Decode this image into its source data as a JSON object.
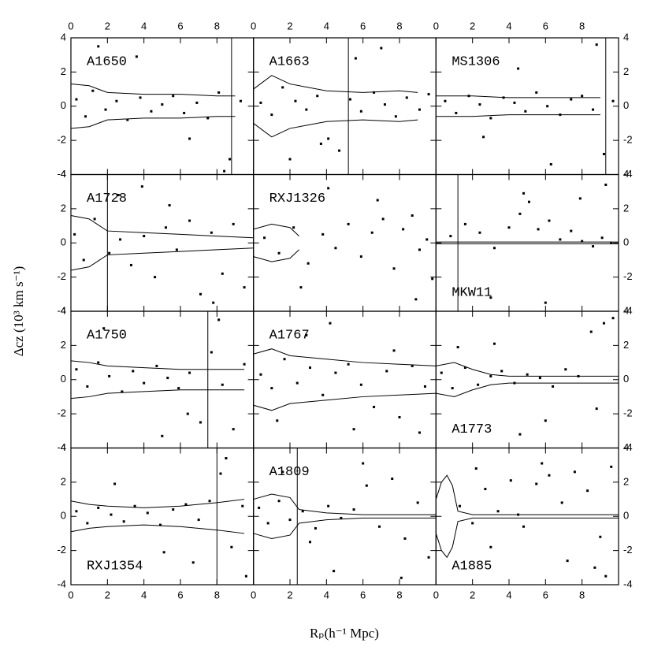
{
  "xlabel": "Rₚ(h⁻¹ Mpc)",
  "ylabel": "Δcz (10³ km s⁻¹)",
  "chart_data": [
    {
      "type": "scatter",
      "title": "A1650",
      "title_position": "top",
      "xlim": [
        0,
        10
      ],
      "ylim": [
        -4,
        4
      ],
      "xticks": [
        0,
        2,
        4,
        6,
        8
      ],
      "yticks": [
        -4,
        -2,
        0,
        2,
        4
      ],
      "color": "#000000",
      "x": [
        0.3,
        0.8,
        1.2,
        1.9,
        2.5,
        3.1,
        3.8,
        4.4,
        5.0,
        5.6,
        6.2,
        6.9,
        7.5,
        8.1,
        8.7,
        9.3,
        3.6,
        6.5,
        8.4,
        1.5
      ],
      "values": [
        0.4,
        -0.6,
        0.9,
        -0.2,
        0.3,
        -0.8,
        0.5,
        -0.3,
        0.1,
        0.6,
        -0.4,
        0.2,
        -0.7,
        0.8,
        -3.1,
        0.3,
        2.9,
        -1.9,
        -3.8,
        3.5
      ],
      "caustic_x": [
        0,
        1,
        2,
        4,
        6,
        8,
        9
      ],
      "caustic": [
        1.3,
        1.2,
        0.8,
        0.7,
        0.7,
        0.6,
        0.6
      ],
      "vline_x": 8.8
    },
    {
      "type": "scatter",
      "title": "A1663",
      "title_position": "top",
      "xlim": [
        0,
        10
      ],
      "ylim": [
        -4,
        4
      ],
      "xticks": [
        0,
        2,
        4,
        6,
        8
      ],
      "yticks": [
        -4,
        -2,
        0,
        2,
        4
      ],
      "color": "#000000",
      "x": [
        0.4,
        1.0,
        1.6,
        2.3,
        2.9,
        3.5,
        4.1,
        4.7,
        5.3,
        5.9,
        6.6,
        7.2,
        7.8,
        8.4,
        9.1,
        9.6,
        3.7,
        5.6,
        7.0,
        2.0
      ],
      "values": [
        0.2,
        -0.5,
        1.1,
        0.3,
        -0.2,
        0.6,
        -1.9,
        -2.6,
        0.4,
        -0.3,
        0.8,
        0.1,
        -0.6,
        0.5,
        -0.2,
        0.7,
        -2.2,
        2.8,
        3.4,
        -3.1
      ],
      "caustic_x": [
        0,
        1,
        2,
        4,
        6,
        8,
        9
      ],
      "caustic": [
        1.0,
        1.8,
        1.3,
        0.9,
        0.8,
        0.9,
        0.8
      ],
      "vline_x": 5.2
    },
    {
      "type": "scatter",
      "title": "MS1306",
      "title_position": "top",
      "xlim": [
        0,
        10
      ],
      "ylim": [
        -4,
        4
      ],
      "xticks": [
        0,
        2,
        4,
        6,
        8
      ],
      "yticks": [
        -4,
        -2,
        0,
        2,
        4
      ],
      "color": "#000000",
      "x": [
        0.5,
        1.1,
        1.8,
        2.4,
        3.0,
        3.7,
        4.3,
        4.9,
        5.5,
        6.1,
        6.8,
        7.4,
        8.0,
        8.6,
        9.2,
        9.7,
        2.6,
        4.5,
        8.8,
        6.3
      ],
      "values": [
        0.3,
        -0.4,
        0.6,
        0.1,
        -0.7,
        0.5,
        0.2,
        -0.3,
        0.8,
        0.0,
        -0.5,
        0.4,
        0.6,
        -0.2,
        -2.8,
        0.3,
        -1.8,
        2.2,
        3.6,
        -3.4
      ],
      "caustic_x": [
        0,
        2,
        4,
        6,
        8,
        9
      ],
      "caustic": [
        0.6,
        0.6,
        0.5,
        0.5,
        0.5,
        0.5
      ],
      "vline_x": 9.3
    },
    {
      "type": "scatter",
      "title": "A1728",
      "title_position": "top",
      "xlim": [
        0,
        10
      ],
      "ylim": [
        -4,
        4
      ],
      "xticks": [
        0,
        2,
        4,
        6,
        8
      ],
      "yticks": [
        -4,
        -2,
        0,
        2,
        4
      ],
      "color": "#000000",
      "x": [
        0.2,
        0.7,
        1.3,
        2.1,
        2.7,
        3.3,
        4.0,
        4.6,
        5.2,
        5.8,
        6.5,
        7.1,
        7.7,
        8.3,
        8.9,
        9.5,
        2.6,
        5.4,
        7.8,
        3.9
      ],
      "values": [
        0.5,
        -1.0,
        1.4,
        -0.6,
        0.2,
        -1.3,
        0.4,
        -2.0,
        0.9,
        -0.4,
        1.3,
        -3.0,
        0.6,
        -1.8,
        1.1,
        -2.6,
        2.8,
        2.2,
        -3.5,
        3.3
      ],
      "caustic_x": [
        0,
        1,
        2,
        4,
        6,
        8,
        10
      ],
      "caustic": [
        1.6,
        1.4,
        0.7,
        0.6,
        0.5,
        0.4,
        0.3
      ],
      "vline_x": 2.0
    },
    {
      "type": "scatter",
      "title": "RXJ1326",
      "title_position": "top",
      "xlim": [
        0,
        10
      ],
      "ylim": [
        -4,
        4
      ],
      "xticks": [
        0,
        2,
        4,
        6,
        8
      ],
      "yticks": [
        -4,
        -2,
        0,
        2,
        4
      ],
      "color": "#000000",
      "x": [
        0.6,
        1.4,
        2.2,
        3.0,
        3.8,
        4.5,
        5.2,
        5.9,
        6.5,
        7.1,
        7.7,
        8.2,
        8.7,
        9.1,
        9.5,
        9.8,
        4.1,
        6.8,
        8.9,
        2.6
      ],
      "values": [
        0.3,
        -0.6,
        0.9,
        -1.2,
        0.5,
        -0.3,
        1.1,
        -0.8,
        0.6,
        1.4,
        -1.5,
        0.8,
        1.6,
        -0.4,
        0.2,
        -2.1,
        3.2,
        2.5,
        -3.3,
        -2.6
      ],
      "caustic_x": [
        0,
        1,
        2,
        2.5
      ],
      "caustic": [
        0.8,
        1.1,
        0.9,
        0.4
      ]
    },
    {
      "type": "scatter",
      "title": "MKW11",
      "title_position": "bottom",
      "xlim": [
        0,
        10
      ],
      "ylim": [
        -4,
        4
      ],
      "xticks": [
        0,
        2,
        4,
        6,
        8
      ],
      "yticks": [
        -4,
        -2,
        0,
        2,
        4
      ],
      "color": "#000000",
      "x": [
        0.8,
        1.6,
        2.4,
        3.2,
        4.0,
        4.6,
        5.1,
        5.6,
        6.2,
        6.8,
        7.4,
        8.0,
        8.6,
        9.1,
        9.6,
        4.8,
        7.9,
        9.3,
        3.0,
        6.0
      ],
      "values": [
        0.4,
        1.1,
        0.6,
        -0.3,
        0.9,
        1.7,
        2.4,
        0.8,
        1.3,
        0.2,
        0.7,
        0.1,
        -0.2,
        0.3,
        0.0,
        2.9,
        2.6,
        3.4,
        -3.2,
        -3.5
      ],
      "caustic_x": [
        0,
        2,
        4,
        6,
        8,
        10
      ],
      "caustic": [
        0.05,
        0.05,
        0.05,
        0.05,
        0.05,
        0.05
      ],
      "vline_x": 1.2
    },
    {
      "type": "scatter",
      "title": "A1750",
      "title_position": "top",
      "xlim": [
        0,
        10
      ],
      "ylim": [
        -4,
        4
      ],
      "xticks": [
        0,
        2,
        4,
        6,
        8
      ],
      "yticks": [
        -4,
        -2,
        0,
        2,
        4
      ],
      "color": "#000000",
      "x": [
        0.3,
        0.9,
        1.5,
        2.1,
        2.8,
        3.4,
        4.0,
        4.7,
        5.3,
        5.9,
        6.5,
        7.1,
        7.7,
        8.3,
        8.9,
        9.5,
        1.8,
        5.0,
        8.1,
        6.4
      ],
      "values": [
        0.6,
        -0.4,
        1.0,
        0.2,
        -0.7,
        0.5,
        -0.2,
        0.8,
        0.1,
        -0.5,
        0.4,
        -2.5,
        1.6,
        -0.3,
        -2.9,
        0.9,
        3.0,
        -3.3,
        3.5,
        -2.0
      ],
      "caustic_x": [
        0,
        1,
        2,
        4,
        6,
        8,
        9.5
      ],
      "caustic": [
        1.1,
        1.0,
        0.8,
        0.7,
        0.6,
        0.6,
        0.6
      ],
      "vline_x": 7.5
    },
    {
      "type": "scatter",
      "title": "A1767",
      "title_position": "top",
      "xlim": [
        0,
        10
      ],
      "ylim": [
        -4,
        4
      ],
      "xticks": [
        0,
        2,
        4,
        6,
        8
      ],
      "yticks": [
        -4,
        -2,
        0,
        2,
        4
      ],
      "color": "#000000",
      "x": [
        0.4,
        1.0,
        1.7,
        2.4,
        3.1,
        3.8,
        4.5,
        5.2,
        5.9,
        6.6,
        7.3,
        8.0,
        8.7,
        9.4,
        2.9,
        5.5,
        7.7,
        9.1,
        1.3,
        4.2
      ],
      "values": [
        0.3,
        -0.5,
        1.2,
        -0.2,
        0.7,
        -0.9,
        0.4,
        0.9,
        -0.3,
        -1.6,
        0.5,
        -2.2,
        0.8,
        -0.4,
        2.6,
        -2.9,
        1.7,
        -3.1,
        -2.4,
        3.3
      ],
      "caustic_x": [
        0,
        1,
        2,
        4,
        6,
        8,
        10
      ],
      "caustic": [
        1.5,
        1.8,
        1.4,
        1.2,
        1.0,
        0.9,
        0.8
      ]
    },
    {
      "type": "scatter",
      "title": "A1773",
      "title_position": "bottom",
      "xlim": [
        0,
        10
      ],
      "ylim": [
        -4,
        4
      ],
      "xticks": [
        0,
        2,
        4,
        6,
        8
      ],
      "yticks": [
        -4,
        -2,
        0,
        2,
        4
      ],
      "color": "#000000",
      "x": [
        0.3,
        0.9,
        1.6,
        2.3,
        3.0,
        3.6,
        4.3,
        5.0,
        5.7,
        6.4,
        7.1,
        7.8,
        8.5,
        9.2,
        9.7,
        3.2,
        6.0,
        8.8,
        4.6,
        1.2
      ],
      "values": [
        0.4,
        -0.5,
        0.7,
        -0.3,
        0.2,
        0.5,
        -0.2,
        0.3,
        0.1,
        -0.4,
        0.6,
        0.2,
        2.8,
        3.3,
        3.6,
        2.1,
        -2.4,
        -1.7,
        -3.2,
        1.9
      ],
      "caustic_x": [
        0,
        1,
        2,
        3,
        4,
        6,
        8,
        10
      ],
      "caustic": [
        0.8,
        1.0,
        0.6,
        0.3,
        0.2,
        0.2,
        0.2,
        0.2
      ]
    },
    {
      "type": "scatter",
      "title": "RXJ1354",
      "title_position": "bottom",
      "xlim": [
        0,
        10
      ],
      "ylim": [
        -4,
        4
      ],
      "xticks": [
        0,
        2,
        4,
        6,
        8
      ],
      "yticks": [
        -4,
        -2,
        0,
        2,
        4
      ],
      "color": "#000000",
      "x": [
        0.3,
        0.9,
        1.5,
        2.2,
        2.9,
        3.5,
        4.2,
        4.9,
        5.6,
        6.3,
        7.0,
        7.6,
        8.2,
        8.8,
        9.4,
        2.4,
        5.1,
        8.5,
        6.7,
        9.6
      ],
      "values": [
        0.3,
        -0.4,
        0.5,
        0.1,
        -0.3,
        0.6,
        0.2,
        -0.5,
        0.4,
        0.7,
        -0.2,
        0.9,
        2.5,
        -1.8,
        0.6,
        1.9,
        -2.1,
        3.4,
        -2.7,
        -3.5
      ],
      "caustic_x": [
        0,
        1,
        2,
        4,
        6,
        8,
        9.5
      ],
      "caustic": [
        0.9,
        0.7,
        0.6,
        0.5,
        0.6,
        0.8,
        1.0
      ],
      "vline_x": 8.0
    },
    {
      "type": "scatter",
      "title": "A1809",
      "title_position": "top",
      "xlim": [
        0,
        10
      ],
      "ylim": [
        -4,
        4
      ],
      "xticks": [
        0,
        2,
        4,
        6,
        8
      ],
      "yticks": [
        -4,
        -2,
        0,
        2,
        4
      ],
      "color": "#000000",
      "x": [
        0.3,
        0.8,
        1.4,
        2.0,
        2.7,
        3.4,
        4.1,
        4.8,
        5.5,
        6.2,
        6.9,
        7.6,
        8.3,
        9.0,
        9.6,
        1.6,
        4.4,
        6.0,
        8.1,
        3.1
      ],
      "values": [
        0.5,
        -0.4,
        0.9,
        -0.2,
        0.3,
        -0.7,
        0.6,
        -0.1,
        0.4,
        1.8,
        -0.6,
        2.2,
        -1.3,
        0.8,
        -2.4,
        2.6,
        -3.2,
        3.1,
        -3.6,
        -1.5
      ],
      "caustic_x": [
        0,
        1,
        2,
        2.5,
        4,
        6,
        8,
        10
      ],
      "caustic": [
        1.0,
        1.3,
        1.1,
        0.4,
        0.2,
        0.1,
        0.1,
        0.1
      ],
      "vline_x": 2.4
    },
    {
      "type": "scatter",
      "title": "A1885",
      "title_position": "bottom",
      "xlim": [
        0,
        10
      ],
      "ylim": [
        -4,
        4
      ],
      "xticks": [
        0,
        2,
        4,
        6,
        8
      ],
      "yticks": [
        -4,
        -2,
        0,
        2,
        4
      ],
      "color": "#000000",
      "x": [
        1.3,
        2.0,
        2.7,
        3.4,
        4.1,
        4.8,
        5.5,
        6.2,
        6.9,
        7.6,
        8.3,
        9.0,
        9.6,
        3.0,
        5.8,
        8.7,
        2.2,
        7.2,
        9.3,
        4.5
      ],
      "values": [
        0.6,
        -0.4,
        1.6,
        0.3,
        2.1,
        -0.6,
        1.9,
        2.4,
        0.8,
        2.6,
        1.5,
        -1.2,
        2.9,
        -1.8,
        3.1,
        -3.0,
        2.8,
        -2.6,
        -3.5,
        0.1
      ],
      "caustic_x": [
        0,
        0.3,
        0.6,
        0.9,
        1.2,
        2,
        4,
        6,
        8,
        10
      ],
      "caustic": [
        1.0,
        2.0,
        2.4,
        1.8,
        0.3,
        0.1,
        0.1,
        0.1,
        0.1,
        0.1
      ]
    }
  ]
}
